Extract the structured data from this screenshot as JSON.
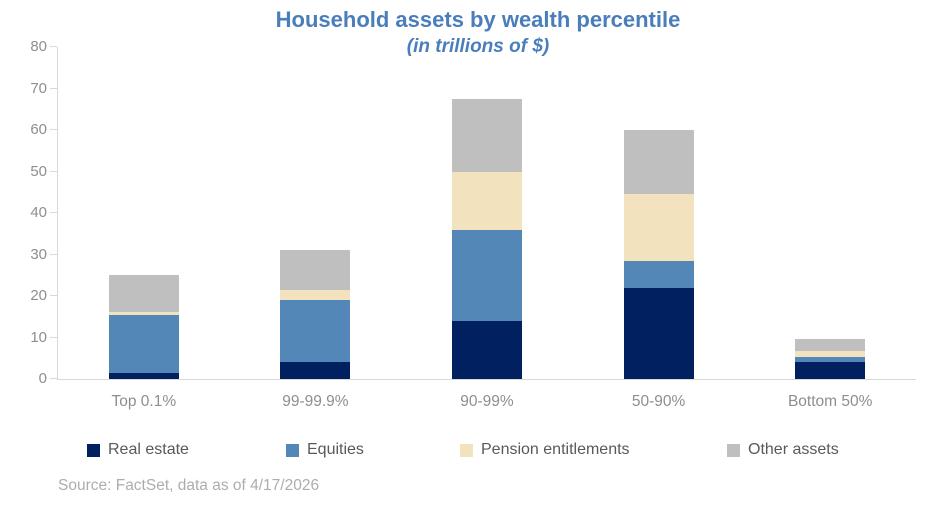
{
  "title": "Household assets by wealth percentile",
  "subtitle": "(in trillions of $)",
  "source": "Source: FactSet, data as of 4/17/2026",
  "colors": {
    "title_blue": "#4A7EBB",
    "axis_line": "#D9D9D9",
    "axis_label": "#8E8E8E",
    "legend_text": "#595959",
    "source_text": "#ADADAD"
  },
  "chart_data": {
    "type": "bar",
    "stacked": true,
    "title": "Household assets by wealth percentile",
    "subtitle": "(in trillions of $)",
    "categories": [
      "Top 0.1%",
      "99-99.9%",
      "90-99%",
      "50-90%",
      "Bottom 50%"
    ],
    "series": [
      {
        "name": "Real estate",
        "color": "#002060",
        "values": [
          1.5,
          4.0,
          14.0,
          22.0,
          4.0
        ]
      },
      {
        "name": "Equities",
        "color": "#5287B8",
        "values": [
          14.0,
          15.0,
          22.0,
          6.5,
          1.2
        ]
      },
      {
        "name": "Pension entitlements",
        "color": "#F2E3BE",
        "values": [
          0.6,
          2.5,
          14.0,
          16.0,
          1.5
        ]
      },
      {
        "name": "Other assets",
        "color": "#BFBFBF",
        "values": [
          9.0,
          9.5,
          17.5,
          15.5,
          3.0
        ]
      }
    ],
    "totals": [
      25.1,
      31.0,
      67.5,
      60.0,
      9.7
    ],
    "ylim": [
      0,
      80
    ],
    "y_ticks": [
      0,
      10,
      20,
      30,
      40,
      50,
      60,
      70,
      80
    ],
    "grid": false,
    "legend_position": "bottom"
  }
}
